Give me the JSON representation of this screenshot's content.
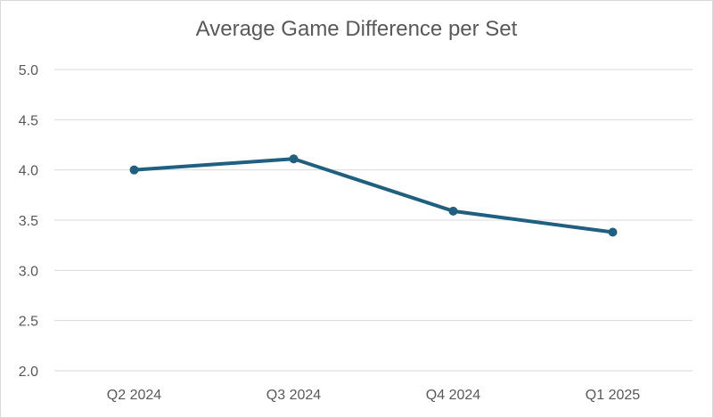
{
  "chart_data": {
    "type": "line",
    "title": "Average Game Difference per Set",
    "xlabel": "",
    "ylabel": "",
    "categories": [
      "Q2 2024",
      "Q3 2024",
      "Q4 2024",
      "Q1 2025"
    ],
    "series": [
      {
        "name": "Average Game Difference per Set",
        "values": [
          4.0,
          4.11,
          3.59,
          3.38
        ],
        "color": "#1f5f7f"
      }
    ],
    "ylim": [
      2.0,
      5.0
    ],
    "yticks": [
      "2.0",
      "2.5",
      "3.0",
      "3.5",
      "4.0",
      "4.5",
      "5.0"
    ],
    "grid": true,
    "legend": "none"
  }
}
